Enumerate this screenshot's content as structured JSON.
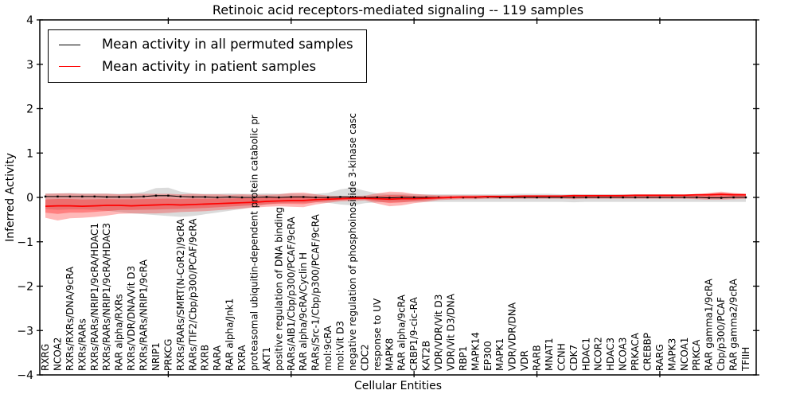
{
  "figure": {
    "title": "Retinoic acid receptors-mediated signaling -- 119 samples",
    "xlabel": "Cellular Entities",
    "ylabel": "Inferred Activity"
  },
  "legend": {
    "entries": [
      {
        "label": "Mean activity in all permuted samples",
        "color": "#000000"
      },
      {
        "label": "Mean activity in patient samples",
        "color": "#ff0000"
      }
    ]
  },
  "colors": {
    "permuted_line": "#000000",
    "patient_line": "#ff0000",
    "permuted_band": "rgba(0,0,0,0.14)",
    "patient_band": "rgba(255,0,0,0.28)"
  },
  "chart_data": {
    "type": "line",
    "title": "Retinoic acid receptors-mediated signaling -- 119 samples",
    "xlabel": "Cellular Entities",
    "ylabel": "Inferred Activity",
    "ylim": [
      -4,
      4
    ],
    "yticks": [
      4,
      3,
      2,
      1,
      0,
      -1,
      -2,
      -3,
      -4
    ],
    "grid": false,
    "legend_position": "upper left",
    "categories": [
      "RXRG",
      "NCOA2",
      "RXRs/RXRs/DNA/9cRA",
      "RXRs/RARs",
      "RXRs/RARs/NRIP1/9cRA/HDAC1",
      "RXRs/RARs/NRIP1/9cRA/HDAC3",
      "RAR alpha/RXRs",
      "RXRs/VDR/DNA/Vit D3",
      "RXRs/RARs/NRIP1/9cRA",
      "NRIP1",
      "PRKCG",
      "RXRs/RARs/SMRT(N-CoR2)/9cRA",
      "RARs/TIF2/Cbp/p300/PCAF/9cRA",
      "RXRB",
      "RARA",
      "RAR alpha/Jnk1",
      "RXRA",
      "proteasomal ubiquitin-dependent protein catabolic pr",
      "AKT1",
      "positive regulation of DNA binding",
      "RARs/AIB1/Cbp/p300/PCAF/9cRA",
      "RAR alpha/9cRA/Cyclin H",
      "RARs/Src-1/Cbp/p300/PCAF/9cRA",
      "mol:9cRA",
      "mol:Vit D3",
      "negative regulation of phosphoinositide 3-kinase casc",
      "CDC2",
      "response to UV",
      "MAPK8",
      "RAR alpha/9cRA",
      "CRBP1/9-cic-RA",
      "KAT2B",
      "VDR/VDR/Vit D3",
      "VDR/Vit D3/DNA",
      "RBP1",
      "MAPK14",
      "EP300",
      "MAPK1",
      "VDR/VDR/DNA",
      "VDR",
      "RARB",
      "MNAT1",
      "CCNH",
      "CDK7",
      "HDAC1",
      "NCOR2",
      "HDAC3",
      "NCOA3",
      "PRKACA",
      "CREBBP",
      "RARG",
      "MAPK3",
      "NCOA1",
      "PRKCA",
      "RAR gamma1/9cRA",
      "Cbp/p300/PCAF",
      "RAR gamma2/9cRA",
      "TFIIH"
    ],
    "series": [
      {
        "name": "Mean activity in all permuted samples",
        "color": "#000000",
        "marker": "square",
        "values": [
          0.02,
          0.02,
          0.02,
          0.02,
          0.02,
          0.01,
          0.01,
          0.01,
          0.02,
          0.04,
          0.04,
          0.02,
          0.01,
          0.01,
          0.0,
          0.01,
          0.0,
          0.0,
          0.01,
          0.0,
          0.01,
          0.01,
          0.0,
          0.0,
          0.01,
          0.01,
          0.0,
          0.0,
          -0.01,
          0.0,
          0.0,
          0.0,
          0.0,
          0.0,
          0.0,
          0.0,
          0.01,
          0.0,
          0.0,
          0.0,
          0.0,
          0.0,
          0.0,
          0.0,
          0.0,
          0.0,
          0.0,
          0.0,
          0.0,
          0.0,
          0.0,
          0.0,
          0.0,
          0.0,
          -0.01,
          -0.01,
          0.0,
          0.0
        ]
      },
      {
        "name": "Mean activity in patient samples",
        "color": "#ff0000",
        "marker": "none",
        "values": [
          -0.2,
          -0.19,
          -0.19,
          -0.2,
          -0.19,
          -0.18,
          -0.18,
          -0.19,
          -0.18,
          -0.17,
          -0.16,
          -0.17,
          -0.16,
          -0.15,
          -0.14,
          -0.13,
          -0.12,
          -0.11,
          -0.09,
          -0.08,
          -0.07,
          -0.07,
          -0.05,
          -0.04,
          -0.03,
          -0.02,
          -0.02,
          -0.03,
          -0.04,
          -0.03,
          -0.03,
          -0.02,
          -0.01,
          0.0,
          0.01,
          0.01,
          0.02,
          0.02,
          0.02,
          0.03,
          0.03,
          0.03,
          0.03,
          0.04,
          0.04,
          0.04,
          0.04,
          0.04,
          0.05,
          0.05,
          0.05,
          0.05,
          0.05,
          0.06,
          0.06,
          0.07,
          0.06,
          0.06
        ]
      }
    ],
    "bands": [
      {
        "name": "permuted-range",
        "color": "rgba(0,0,0,0.14)",
        "upper": [
          0.09,
          0.09,
          0.1,
          0.09,
          0.09,
          0.09,
          0.08,
          0.09,
          0.12,
          0.21,
          0.22,
          0.13,
          0.09,
          0.08,
          0.08,
          0.09,
          0.08,
          0.08,
          0.09,
          0.08,
          0.09,
          0.08,
          0.08,
          0.1,
          0.18,
          0.22,
          0.15,
          0.09,
          0.08,
          0.08,
          0.07,
          0.07,
          0.07,
          0.07,
          0.07,
          0.07,
          0.07,
          0.07,
          0.08,
          0.08,
          0.08,
          0.08,
          0.07,
          0.07,
          0.07,
          0.07,
          0.07,
          0.07,
          0.07,
          0.07,
          0.07,
          0.07,
          0.07,
          0.07,
          0.07,
          0.08,
          0.07,
          0.07
        ],
        "lower": [
          -0.26,
          -0.28,
          -0.27,
          -0.27,
          -0.28,
          -0.3,
          -0.33,
          -0.36,
          -0.38,
          -0.4,
          -0.42,
          -0.44,
          -0.42,
          -0.38,
          -0.34,
          -0.3,
          -0.26,
          -0.21,
          -0.16,
          -0.13,
          -0.12,
          -0.12,
          -0.11,
          -0.12,
          -0.16,
          -0.18,
          -0.13,
          -0.11,
          -0.1,
          -0.1,
          -0.1,
          -0.1,
          -0.1,
          -0.1,
          -0.1,
          -0.1,
          -0.1,
          -0.1,
          -0.1,
          -0.1,
          -0.1,
          -0.1,
          -0.1,
          -0.11,
          -0.1,
          -0.1,
          -0.1,
          -0.1,
          -0.1,
          -0.1,
          -0.1,
          -0.1,
          -0.1,
          -0.1,
          -0.1,
          -0.1,
          -0.1,
          -0.1
        ]
      },
      {
        "name": "patient-range-outer",
        "color": "rgba(255,0,0,0.28)",
        "upper": [
          0.08,
          0.09,
          0.09,
          0.08,
          0.08,
          0.08,
          0.07,
          0.08,
          0.08,
          0.08,
          0.08,
          0.07,
          0.08,
          0.07,
          0.07,
          0.06,
          0.07,
          0.06,
          0.06,
          0.07,
          0.1,
          0.11,
          0.07,
          0.04,
          0.03,
          0.03,
          0.04,
          0.09,
          0.13,
          0.12,
          0.08,
          0.06,
          0.05,
          0.05,
          0.05,
          0.05,
          0.05,
          0.05,
          0.05,
          0.05,
          0.05,
          0.05,
          0.05,
          0.06,
          0.05,
          0.05,
          0.05,
          0.06,
          0.06,
          0.06,
          0.06,
          0.06,
          0.06,
          0.07,
          0.1,
          0.13,
          0.1,
          0.08
        ],
        "lower": [
          -0.46,
          -0.52,
          -0.47,
          -0.46,
          -0.44,
          -0.41,
          -0.37,
          -0.36,
          -0.36,
          -0.36,
          -0.35,
          -0.33,
          -0.32,
          -0.31,
          -0.29,
          -0.27,
          -0.25,
          -0.23,
          -0.21,
          -0.2,
          -0.21,
          -0.22,
          -0.16,
          -0.12,
          -0.09,
          -0.08,
          -0.07,
          -0.14,
          -0.2,
          -0.18,
          -0.13,
          -0.1,
          -0.06,
          -0.05,
          -0.04,
          -0.04,
          -0.03,
          -0.03,
          -0.03,
          -0.03,
          -0.03,
          -0.03,
          -0.03,
          -0.04,
          -0.03,
          -0.03,
          -0.03,
          -0.03,
          -0.03,
          -0.03,
          -0.03,
          -0.03,
          -0.03,
          -0.04,
          -0.05,
          -0.05,
          -0.04,
          -0.03
        ]
      },
      {
        "name": "patient-range-inner",
        "color": "rgba(255,0,0,0.30)",
        "derive_from": "patient-range-outer",
        "derive_series": "Mean activity in patient samples",
        "scale": 0.55
      }
    ]
  }
}
